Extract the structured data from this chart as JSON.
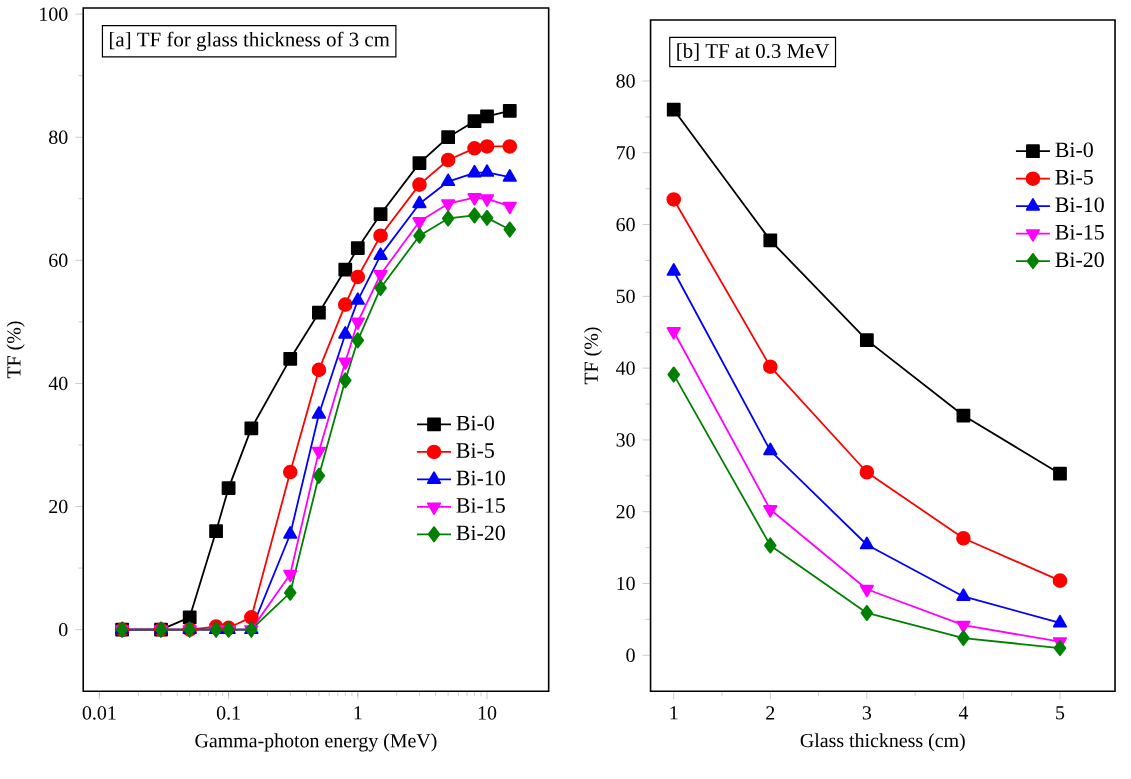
{
  "chart_data": [
    {
      "type": "line",
      "title": "[a] TF for glass thickness of 3 cm",
      "xlabel": "Gamma-photon energy (MeV)",
      "ylabel": "TF (%)",
      "log": "x",
      "legend": "right",
      "x": [
        0.015,
        0.03,
        0.05,
        0.08,
        0.1,
        0.15,
        0.3,
        0.5,
        0.8,
        1,
        1.5,
        3,
        5,
        8,
        10,
        15
      ],
      "xlim": [
        0.0075,
        30
      ],
      "ylim": [
        -10,
        101
      ],
      "xticks": [
        0.01,
        0.1,
        1,
        10
      ],
      "yticks": [
        0,
        20,
        40,
        60,
        80,
        100
      ],
      "series": [
        {
          "name": "Bi-0",
          "color": "#000000",
          "marker": "square",
          "values": [
            0,
            0,
            2,
            16,
            23,
            32.7,
            44,
            51.5,
            58.5,
            62,
            67.5,
            75.8,
            80,
            82.6,
            83.4,
            84.3
          ]
        },
        {
          "name": "Bi-5",
          "color": "#ff0000",
          "marker": "circle",
          "values": [
            0,
            0,
            0,
            0.5,
            0.3,
            2,
            25.6,
            42.2,
            52.8,
            57.3,
            64,
            72.3,
            76.3,
            78.2,
            78.5,
            78.5
          ]
        },
        {
          "name": "Bi-10",
          "color": "#0000ff",
          "marker": "triangle",
          "values": [
            0,
            0,
            0,
            0,
            0,
            0,
            15.5,
            35,
            48,
            53.5,
            60.8,
            69.2,
            72.8,
            74.2,
            74.3,
            73.5
          ]
        },
        {
          "name": "Bi-15",
          "color": "#ff00ff",
          "marker": "triangle-down",
          "values": [
            0,
            0,
            0,
            0,
            0,
            0,
            9,
            29,
            43.5,
            50,
            57.7,
            66.3,
            69.2,
            70.2,
            70,
            68.8
          ]
        },
        {
          "name": "Bi-20",
          "color": "#008000",
          "marker": "diamond",
          "values": [
            0,
            0,
            0,
            0,
            0,
            0,
            6,
            25,
            40.5,
            47,
            55.5,
            64,
            66.8,
            67.3,
            66.9,
            65
          ]
        }
      ]
    },
    {
      "type": "line",
      "title": "[b] TF at 0.3 MeV",
      "xlabel": "Glass thickness (cm)",
      "ylabel": "TF (%)",
      "legend": "top right",
      "x": [
        1,
        2,
        3,
        4,
        5
      ],
      "xlim": [
        0.76,
        5.57
      ],
      "ylim": [
        -5,
        88.5
      ],
      "xticks": [
        1,
        2,
        3,
        4,
        5
      ],
      "yticks": [
        0,
        10,
        20,
        30,
        40,
        50,
        60,
        70,
        80
      ],
      "series": [
        {
          "name": "Bi-0",
          "color": "#000000",
          "marker": "square",
          "values": [
            76,
            57.8,
            43.9,
            33.4,
            25.3
          ]
        },
        {
          "name": "Bi-5",
          "color": "#ff0000",
          "marker": "circle",
          "values": [
            63.5,
            40.2,
            25.5,
            16.3,
            10.4
          ]
        },
        {
          "name": "Bi-10",
          "color": "#0000ff",
          "marker": "triangle",
          "values": [
            53.5,
            28.5,
            15.4,
            8.2,
            4.5
          ]
        },
        {
          "name": "Bi-15",
          "color": "#ff00ff",
          "marker": "triangle-down",
          "values": [
            45.1,
            20.3,
            9.2,
            4.2,
            1.9
          ]
        },
        {
          "name": "Bi-20",
          "color": "#008000",
          "marker": "diamond",
          "values": [
            39.1,
            15.3,
            5.9,
            2.4,
            1.0
          ]
        }
      ]
    }
  ]
}
